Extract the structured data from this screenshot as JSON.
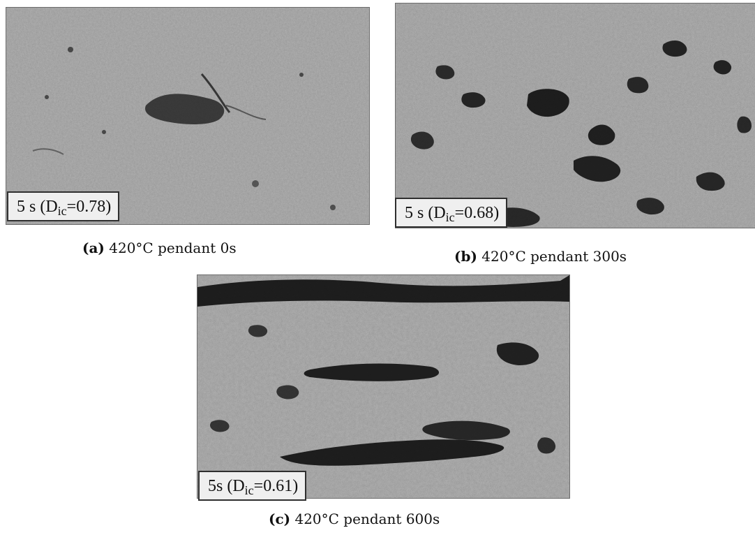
{
  "figures": [
    {
      "id": "a",
      "label_main": "5 s (D",
      "label_sub": "ic",
      "label_tail": "=0.78)",
      "caption_tag": "(a)",
      "caption_text": " 420°C pendant 0s"
    },
    {
      "id": "b",
      "label_main": "5 s (D",
      "label_sub": "ic",
      "label_tail": "=0.68)",
      "caption_tag": "(b)",
      "caption_text": " 420°C pendant 300s"
    },
    {
      "id": "c",
      "label_main": "5s (D",
      "label_sub": "ic",
      "label_tail": "=0.61)",
      "caption_tag": "(c)",
      "caption_text": " 420°C pendant 600s"
    }
  ],
  "colors": {
    "micrograph_base": "#8f8f8f",
    "micrograph_dark": "#151515",
    "micrograph_light": "#d7d7d7",
    "label_background": "#efefef",
    "label_border": "#2f2f2f"
  }
}
